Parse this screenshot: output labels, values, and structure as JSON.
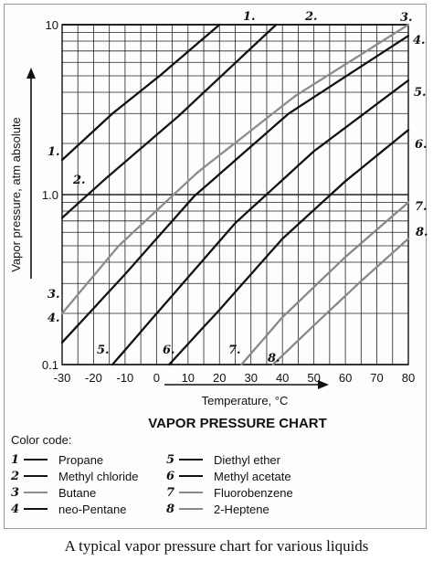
{
  "chart_data": {
    "type": "line",
    "title": "VAPOR PRESSURE CHART",
    "xlabel": "Temperature, °C",
    "ylabel": "Vapor pressure, atm absolute",
    "xlim": [
      -30,
      80
    ],
    "ylim": [
      0.1,
      10
    ],
    "yscale": "log",
    "xticks": [
      "-30",
      "-20",
      "-10",
      "0",
      "10",
      "20",
      "30",
      "40",
      "50",
      "60",
      "70",
      "80"
    ],
    "yticks": [
      {
        "value": 0.1,
        "label": "0.1"
      },
      {
        "value": 1.0,
        "label": "1.0"
      },
      {
        "value": 10,
        "label": "10"
      }
    ],
    "grid": true,
    "series": [
      {
        "name": "Propane",
        "label": "1.",
        "color": "#111111",
        "x": [
          -30,
          -14,
          1,
          20
        ],
        "y": [
          1.6,
          3.0,
          5.0,
          10
        ]
      },
      {
        "name": "Methyl chloride",
        "label": "2.",
        "color": "#151515",
        "x": [
          -30,
          -16,
          7,
          38
        ],
        "y": [
          0.73,
          1.25,
          2.9,
          10
        ]
      },
      {
        "name": "Butane",
        "label": "3.",
        "color": "#8c8c8c",
        "x": [
          -30,
          -12,
          13,
          44,
          80
        ],
        "y": [
          0.2,
          0.5,
          1.35,
          3.8,
          10
        ]
      },
      {
        "name": "neo-Pentane",
        "label": "4.",
        "color": "#111111",
        "x": [
          -30,
          -10,
          12,
          42,
          80
        ],
        "y": [
          0.135,
          0.34,
          0.98,
          3.0,
          8.6
        ]
      },
      {
        "name": "Diethyl ether",
        "label": "5.",
        "color": "#111111",
        "x": [
          -14,
          2,
          25,
          50,
          80
        ],
        "y": [
          0.1,
          0.22,
          0.68,
          1.8,
          4.7
        ]
      },
      {
        "name": "Methyl acetate",
        "label": "6.",
        "color": "#111111",
        "x": [
          4,
          20,
          40,
          60,
          80
        ],
        "y": [
          0.1,
          0.21,
          0.55,
          1.2,
          2.4
        ]
      },
      {
        "name": "Fluorobenzene",
        "label": "7.",
        "color": "#888888",
        "x": [
          27,
          40,
          60,
          80
        ],
        "y": [
          0.1,
          0.19,
          0.43,
          0.9
        ]
      },
      {
        "name": "2-Heptene",
        "label": "8.",
        "color": "#888888",
        "x": [
          37,
          50,
          65,
          80
        ],
        "y": [
          0.1,
          0.17,
          0.31,
          0.55
        ]
      }
    ]
  },
  "legend": {
    "heading": "Color code:",
    "items": [
      {
        "num": "1",
        "name": "Propane",
        "color": "#111111"
      },
      {
        "num": "2",
        "name": "Methyl chloride",
        "color": "#151515"
      },
      {
        "num": "3",
        "name": "Butane",
        "color": "#8c8c8c"
      },
      {
        "num": "4",
        "name": "neo-Pentane",
        "color": "#111111"
      },
      {
        "num": "5",
        "name": "Diethyl ether",
        "color": "#111111"
      },
      {
        "num": "6",
        "name": "Methyl acetate",
        "color": "#111111"
      },
      {
        "num": "7",
        "name": "Fluorobenzene",
        "color": "#888888"
      },
      {
        "num": "8",
        "name": "2-Heptene",
        "color": "#888888"
      }
    ]
  },
  "caption": "A typical vapor pressure chart for various liquids"
}
